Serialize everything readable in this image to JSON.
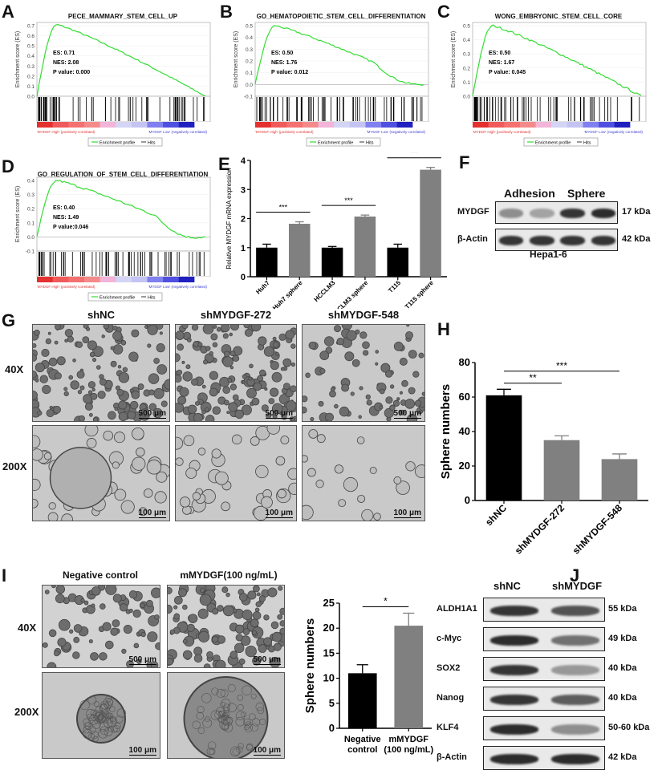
{
  "panels": {
    "A": {
      "letter": "A",
      "title": "PECE_MAMMARY_STEM_CELL_UP",
      "es": "ES: 0.71",
      "nes": "NES: 2.08",
      "pvalue": "P value: 0.000",
      "yticks": [
        "0.0",
        "0.1",
        "0.2",
        "0.3",
        "0.4",
        "0.5",
        "0.6",
        "0.7"
      ],
      "ymin": 0.0,
      "ymax": 0.7,
      "peak": 0.71,
      "end": 0.0
    },
    "B": {
      "letter": "B",
      "title": "GO_HEMATOPOIETIC_STEM_CELL_DIFFERENTIATION",
      "es": "ES: 0.50",
      "nes": "NES: 1.76",
      "pvalue": "P value: 0.012",
      "yticks": [
        "-0.1",
        "0.0",
        "0.1",
        "0.2",
        "0.3",
        "0.4",
        "0.5"
      ],
      "ymin": -0.1,
      "ymax": 0.5,
      "peak": 0.5,
      "end": 0.0
    },
    "C": {
      "letter": "C",
      "title": "WONG_EMBRYONIC_STEM_CELL_CORE",
      "es": "ES: 0.50",
      "nes": "NES: 1.67",
      "pvalue": "P value: 0.045",
      "yticks": [
        "0.0",
        "0.1",
        "0.2",
        "0.3",
        "0.4",
        "0.5"
      ],
      "ymin": 0.0,
      "ymax": 0.5,
      "peak": 0.5,
      "end": 0.0
    },
    "D": {
      "letter": "D",
      "title": "GO_REGULATION_OF_STEM_CELL_DIFFERENTIATION",
      "es": "ES: 0.40",
      "nes": "NES: 1.49",
      "pvalue": "P value:0.046",
      "yticks": [
        "-0.1",
        "0.0",
        "0.1",
        "0.2",
        "0.3",
        "0.4"
      ],
      "ymin": -0.1,
      "ymax": 0.4,
      "peak": 0.4,
      "end": 0.0
    }
  },
  "gsea_common": {
    "ylabel": "Enrichment score (ES)",
    "high_label": "'MYDGF High' (positively correlated)",
    "low_label": "'MYDGF Low' (negatively correlated)",
    "legend_profile": "Enrichment profile",
    "legend_hits": "Hits",
    "curve_color": "#33dd33"
  },
  "chart_data": [
    {
      "id": "E",
      "type": "bar",
      "ylabel": "Relative MYDGF mRNA expression",
      "categories": [
        "Huh7",
        "Huh7 sphere",
        "HCCLM3",
        "HCCLM3 sphere",
        "T115",
        "T115 sphere"
      ],
      "values": [
        1.0,
        1.82,
        1.0,
        2.07,
        1.0,
        3.68
      ],
      "errors": [
        0.12,
        0.07,
        0.04,
        0.05,
        0.12,
        0.08
      ],
      "colors": [
        "#000000",
        "#808080",
        "#000000",
        "#808080",
        "#000000",
        "#808080"
      ],
      "ylim": [
        0,
        4
      ],
      "yticks": [
        "0",
        "1",
        "2",
        "3",
        "4"
      ],
      "significance": [
        {
          "pair": [
            0,
            1
          ],
          "label": "***"
        },
        {
          "pair": [
            2,
            3
          ],
          "label": "***"
        },
        {
          "pair": [
            4,
            5
          ],
          "label": "***"
        }
      ]
    },
    {
      "id": "H",
      "type": "bar",
      "ylabel": "Sphere numbers",
      "categories": [
        "shNC",
        "shMYDGF-272",
        "shMYDGF-548"
      ],
      "values": [
        61,
        35,
        24
      ],
      "errors": [
        3.5,
        2.5,
        3
      ],
      "colors": [
        "#000000",
        "#808080",
        "#808080"
      ],
      "ylim": [
        0,
        80
      ],
      "yticks": [
        "0",
        "20",
        "40",
        "60",
        "80"
      ],
      "significance": [
        {
          "pair": [
            0,
            1
          ],
          "label": "**"
        },
        {
          "pair": [
            0,
            2
          ],
          "label": "***"
        }
      ]
    },
    {
      "id": "I",
      "type": "bar",
      "ylabel": "Sphere numbers",
      "categories": [
        "Negative control",
        "mMYDGF (100 ng/mL)"
      ],
      "values": [
        11,
        20.5
      ],
      "errors": [
        1.7,
        2.5
      ],
      "colors": [
        "#000000",
        "#808080"
      ],
      "ylim": [
        0,
        25
      ],
      "yticks": [
        "0",
        "5",
        "10",
        "15",
        "20",
        "25"
      ],
      "significance": [
        {
          "pair": [
            0,
            1
          ],
          "label": "*"
        }
      ]
    }
  ],
  "panelF": {
    "letter": "F",
    "col_adhesion": "Adhesion",
    "col_sphere": "Sphere",
    "rows": [
      {
        "protein": "MYDGF",
        "size": "17 kDa",
        "intensity": [
          0.45,
          0.35,
          0.9,
          0.95
        ]
      },
      {
        "protein": "β-Actin",
        "size": "42 kDa",
        "intensity": [
          0.9,
          0.9,
          0.9,
          0.9
        ]
      }
    ],
    "cell_line": "Hepa1-6"
  },
  "panelG": {
    "letter": "G",
    "columns": [
      "shNC",
      "shMYDGF-272",
      "shMYDGF-548"
    ],
    "rows": [
      {
        "mag": "40X",
        "scale": "500 μm"
      },
      {
        "mag": "200X",
        "scale": "100 μm"
      }
    ]
  },
  "panelH": {
    "letter": "H"
  },
  "panelI": {
    "letter": "I",
    "columns": [
      "Negative control",
      "mMYDGF(100 ng/mL)"
    ],
    "rows": [
      {
        "mag": "40X",
        "scale": "500 μm"
      },
      {
        "mag": "200X",
        "scale": "100 μm"
      }
    ],
    "xlabels": [
      [
        "Negative",
        "control"
      ],
      [
        "mMYDGF",
        "(100 ng/mL)"
      ]
    ]
  },
  "panelJ": {
    "letter": "J",
    "columns": [
      "shNC",
      "shMYDGF"
    ],
    "rows": [
      {
        "protein": "ALDH1A1",
        "size": "55 kDa",
        "intensity": [
          0.9,
          0.75
        ]
      },
      {
        "protein": "c-Myc",
        "size": "49 kDa",
        "intensity": [
          0.95,
          0.6
        ]
      },
      {
        "protein": "SOX2",
        "size": "40 kDa",
        "intensity": [
          0.9,
          0.4
        ]
      },
      {
        "protein": "Nanog",
        "size": "40 kDa",
        "intensity": [
          0.9,
          0.7
        ]
      },
      {
        "protein": "KLF4",
        "size": "50-60 kDa",
        "intensity": [
          0.95,
          0.45
        ]
      },
      {
        "protein": "β-Actin",
        "size": "42 kDa",
        "intensity": [
          0.95,
          0.95
        ]
      }
    ]
  }
}
